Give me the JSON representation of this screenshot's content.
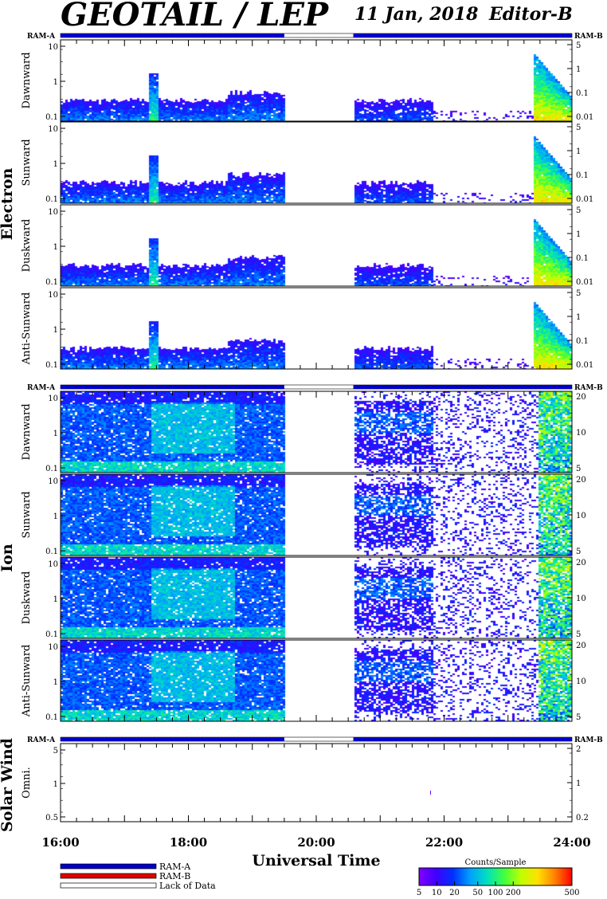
{
  "header": {
    "title": "GEOTAIL / LEP",
    "date": "11 Jan, 2018",
    "editor": "Editor-B"
  },
  "colors": {
    "ram_a": "#0000c8",
    "ram_b": "#e00000",
    "lack_of_data": "#ffffff",
    "colorbar_stops": [
      "#8000ff",
      "#4000ff",
      "#0030ff",
      "#00a0ff",
      "#00e0c0",
      "#40ff40",
      "#c0ff00",
      "#ffe000",
      "#ff8000",
      "#ff0000"
    ]
  },
  "ram_labels": {
    "a": "RAM-A",
    "b": "RAM-B"
  },
  "sections": [
    {
      "name": "Electron",
      "panels": [
        {
          "label": "Dawnward",
          "left_ticks": [
            "10",
            "1",
            "0.1"
          ],
          "right_ticks": [
            "5",
            "1",
            "0.1",
            "0.01"
          ]
        },
        {
          "label": "Sunward",
          "left_ticks": [
            "10",
            "1",
            "0.1"
          ],
          "right_ticks": [
            "5",
            "1",
            "0.1",
            "0.01"
          ]
        },
        {
          "label": "Duskward",
          "left_ticks": [
            "10",
            "1",
            "0.1"
          ],
          "right_ticks": [
            "5",
            "1",
            "0.1",
            "0.01"
          ]
        },
        {
          "label": "Anti-Sunward",
          "left_ticks": [
            "10",
            "1",
            "0.1"
          ],
          "right_ticks": [
            "5",
            "1",
            "0.1",
            "0.01"
          ]
        }
      ]
    },
    {
      "name": "Ion",
      "panels": [
        {
          "label": "Dawnward",
          "left_ticks": [
            "10",
            "1",
            "0.1"
          ],
          "right_ticks": [
            "20",
            "10",
            "5"
          ]
        },
        {
          "label": "Sunward",
          "left_ticks": [
            "10",
            "1",
            "0.1"
          ],
          "right_ticks": [
            "20",
            "10",
            "5"
          ]
        },
        {
          "label": "Duskward",
          "left_ticks": [
            "10",
            "1",
            "0.1"
          ],
          "right_ticks": [
            "20",
            "10",
            "5"
          ]
        },
        {
          "label": "Anti-Sunward",
          "left_ticks": [
            "10",
            "1",
            "0.1"
          ],
          "right_ticks": [
            "20",
            "10",
            "5"
          ]
        }
      ]
    },
    {
      "name": "Solar Wind",
      "panels": [
        {
          "label": "Omni.",
          "left_ticks": [
            "5",
            "1",
            "0.5"
          ],
          "right_ticks": [
            "2",
            "1",
            "0.2"
          ]
        }
      ]
    }
  ],
  "chart_data": {
    "type": "heatmap",
    "x_axis": {
      "label": "Universal Time",
      "ticks": [
        "16:00",
        "18:00",
        "20:00",
        "22:00",
        "24:00"
      ],
      "range_hours": [
        16,
        24
      ]
    },
    "ram_status_hours": {
      "ram_a": [
        [
          16.0,
          19.5
        ],
        [
          20.58,
          24.0
        ]
      ],
      "lack_of_data": [
        [
          19.5,
          20.58
        ]
      ]
    },
    "data_gap_hours": [
      19.5,
      20.58
    ],
    "features": {
      "electron_enhancement_hours": [
        17.35,
        17.5
      ],
      "electron_burst_hours": [
        23.4,
        24.0
      ],
      "ion_burst_hours": [
        23.45,
        24.0
      ]
    },
    "colorbar": {
      "title": "Counts/Sample",
      "ticks": [
        "5",
        "10",
        "20",
        "50",
        "100",
        "200",
        "500"
      ]
    },
    "legend": [
      {
        "name": "RAM-A",
        "color": "#0000c8"
      },
      {
        "name": "RAM-B",
        "color": "#e00000"
      },
      {
        "name": "Lack of Data",
        "color": "#ffffff"
      }
    ]
  }
}
